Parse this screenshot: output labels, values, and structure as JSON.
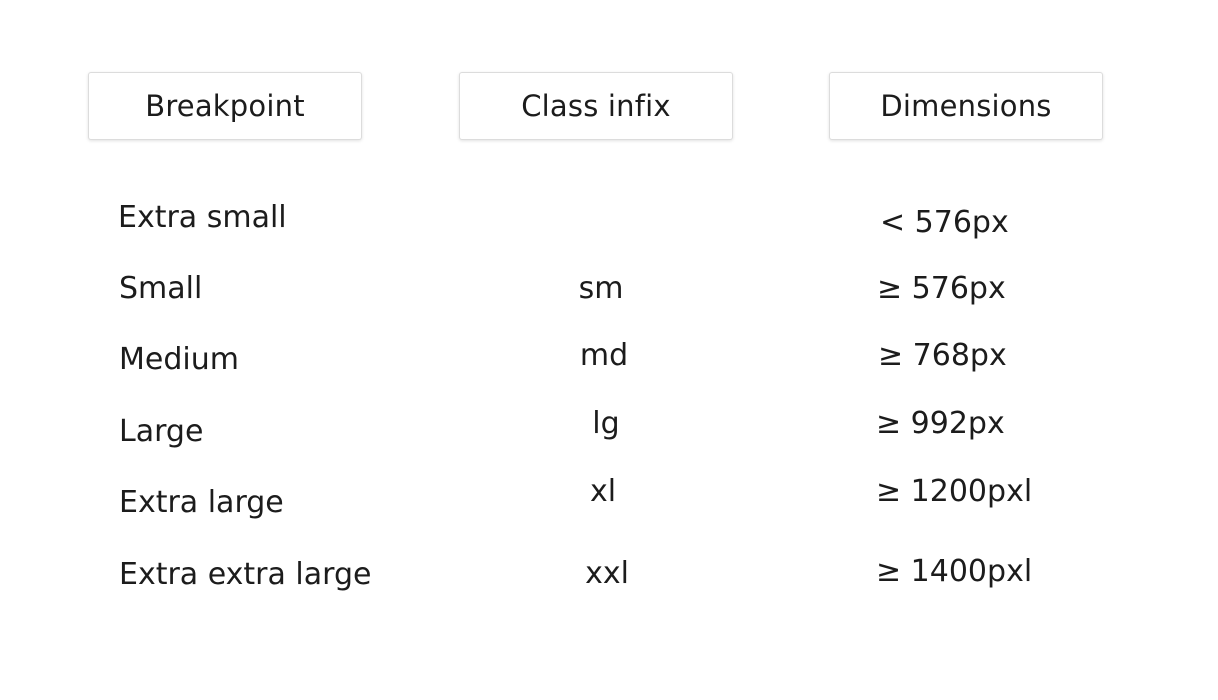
{
  "headers": [
    "Breakpoint",
    "Class infix",
    "Dimensions"
  ],
  "rows": [
    {
      "breakpoint": "Extra small",
      "infix": "",
      "dimensions": "< 576px"
    },
    {
      "breakpoint": "Small",
      "infix": "sm",
      "dimensions": "≥ 576px"
    },
    {
      "breakpoint": "Medium",
      "infix": "md",
      "dimensions": "≥ 768px"
    },
    {
      "breakpoint": "Large",
      "infix": "lg",
      "dimensions": "≥ 992px"
    },
    {
      "breakpoint": "Extra large",
      "infix": "xl",
      "dimensions": "≥ 1200pxl"
    },
    {
      "breakpoint": "Extra extra large",
      "infix": "xxl",
      "dimensions": "≥ 1400pxl"
    }
  ]
}
